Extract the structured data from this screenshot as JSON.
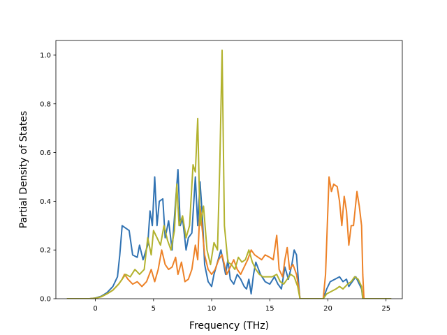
{
  "chart_data": {
    "type": "line",
    "title": "",
    "xlabel": "Frequency (THz)",
    "ylabel": "Partial Density of States",
    "xlim": [
      -3.4,
      26.4
    ],
    "ylim": [
      0.0,
      1.06
    ],
    "xticks": [
      0,
      5,
      10,
      15,
      20,
      25
    ],
    "xtick_labels": [
      "0",
      "5",
      "10",
      "15",
      "20",
      "25"
    ],
    "yticks": [
      0.0,
      0.2,
      0.4,
      0.6,
      0.8,
      1.0
    ],
    "ytick_labels": [
      "0.0",
      "0.2",
      "0.4",
      "0.6",
      "0.8",
      "1.0"
    ],
    "grid": false,
    "legend": "none",
    "series": [
      {
        "color": "#3173b3",
        "points": [
          [
            -2.4,
            0
          ],
          [
            -0.5,
            0
          ],
          [
            0,
            0.003
          ],
          [
            0.5,
            0.01
          ],
          [
            1,
            0.025
          ],
          [
            1.5,
            0.05
          ],
          [
            1.9,
            0.09
          ],
          [
            2.1,
            0.18
          ],
          [
            2.3,
            0.3
          ],
          [
            2.6,
            0.29
          ],
          [
            2.9,
            0.28
          ],
          [
            3.2,
            0.18
          ],
          [
            3.6,
            0.17
          ],
          [
            3.8,
            0.22
          ],
          [
            4.1,
            0.16
          ],
          [
            4.5,
            0.22
          ],
          [
            4.7,
            0.36
          ],
          [
            4.9,
            0.3
          ],
          [
            5.1,
            0.5
          ],
          [
            5.3,
            0.3
          ],
          [
            5.5,
            0.4
          ],
          [
            5.8,
            0.41
          ],
          [
            6.0,
            0.25
          ],
          [
            6.3,
            0.32
          ],
          [
            6.6,
            0.2
          ],
          [
            6.9,
            0.4
          ],
          [
            7.1,
            0.53
          ],
          [
            7.3,
            0.3
          ],
          [
            7.5,
            0.33
          ],
          [
            7.8,
            0.2
          ],
          [
            8.0,
            0.25
          ],
          [
            8.3,
            0.27
          ],
          [
            8.6,
            0.5
          ],
          [
            8.8,
            0.3
          ],
          [
            9.0,
            0.48
          ],
          [
            9.2,
            0.34
          ],
          [
            9.4,
            0.14
          ],
          [
            9.7,
            0.07
          ],
          [
            10.0,
            0.05
          ],
          [
            10.2,
            0.1
          ],
          [
            10.5,
            0.15
          ],
          [
            10.8,
            0.2
          ],
          [
            11.0,
            0.15
          ],
          [
            11.2,
            0.1
          ],
          [
            11.4,
            0.16
          ],
          [
            11.6,
            0.08
          ],
          [
            11.9,
            0.06
          ],
          [
            12.2,
            0.1
          ],
          [
            12.5,
            0.08
          ],
          [
            12.8,
            0.05
          ],
          [
            13.0,
            0.04
          ],
          [
            13.2,
            0.08
          ],
          [
            13.4,
            0.02
          ],
          [
            13.6,
            0.1
          ],
          [
            13.8,
            0.15
          ],
          [
            14.2,
            0.1
          ],
          [
            14.6,
            0.07
          ],
          [
            15.0,
            0.06
          ],
          [
            15.4,
            0.09
          ],
          [
            15.7,
            0.06
          ],
          [
            16.0,
            0.04
          ],
          [
            16.3,
            0.13
          ],
          [
            16.6,
            0.08
          ],
          [
            16.9,
            0.14
          ],
          [
            17.1,
            0.2
          ],
          [
            17.3,
            0.18
          ],
          [
            17.5,
            0.05
          ],
          [
            17.6,
            0
          ],
          [
            19.6,
            0
          ],
          [
            19.9,
            0.04
          ],
          [
            20.2,
            0.07
          ],
          [
            20.6,
            0.08
          ],
          [
            21.0,
            0.09
          ],
          [
            21.3,
            0.07
          ],
          [
            21.6,
            0.08
          ],
          [
            21.8,
            0.05
          ],
          [
            22.1,
            0.07
          ],
          [
            22.4,
            0.09
          ],
          [
            22.7,
            0.06
          ],
          [
            22.9,
            0.04
          ],
          [
            23.0,
            0
          ],
          [
            25.4,
            0
          ]
        ]
      },
      {
        "color": "#ed8228",
        "points": [
          [
            -2.4,
            0
          ],
          [
            -0.5,
            0
          ],
          [
            0,
            0.002
          ],
          [
            0.5,
            0.008
          ],
          [
            1,
            0.02
          ],
          [
            1.5,
            0.035
          ],
          [
            2.0,
            0.06
          ],
          [
            2.3,
            0.08
          ],
          [
            2.5,
            0.1
          ],
          [
            2.8,
            0.08
          ],
          [
            3.2,
            0.06
          ],
          [
            3.6,
            0.07
          ],
          [
            4.0,
            0.05
          ],
          [
            4.4,
            0.07
          ],
          [
            4.8,
            0.12
          ],
          [
            5.1,
            0.07
          ],
          [
            5.4,
            0.12
          ],
          [
            5.7,
            0.2
          ],
          [
            6.0,
            0.14
          ],
          [
            6.3,
            0.12
          ],
          [
            6.6,
            0.13
          ],
          [
            6.9,
            0.17
          ],
          [
            7.1,
            0.1
          ],
          [
            7.4,
            0.15
          ],
          [
            7.7,
            0.07
          ],
          [
            8.0,
            0.08
          ],
          [
            8.3,
            0.12
          ],
          [
            8.6,
            0.22
          ],
          [
            8.8,
            0.16
          ],
          [
            9.0,
            0.38
          ],
          [
            9.2,
            0.28
          ],
          [
            9.4,
            0.18
          ],
          [
            9.7,
            0.12
          ],
          [
            10.0,
            0.1
          ],
          [
            10.3,
            0.12
          ],
          [
            10.6,
            0.16
          ],
          [
            10.9,
            0.18
          ],
          [
            11.1,
            0.14
          ],
          [
            11.3,
            0.1
          ],
          [
            11.6,
            0.13
          ],
          [
            11.9,
            0.16
          ],
          [
            12.2,
            0.12
          ],
          [
            12.5,
            0.1
          ],
          [
            12.8,
            0.13
          ],
          [
            13.1,
            0.16
          ],
          [
            13.4,
            0.2
          ],
          [
            13.7,
            0.18
          ],
          [
            14.0,
            0.17
          ],
          [
            14.3,
            0.16
          ],
          [
            14.6,
            0.18
          ],
          [
            15.0,
            0.17
          ],
          [
            15.3,
            0.16
          ],
          [
            15.6,
            0.26
          ],
          [
            15.8,
            0.12
          ],
          [
            16.1,
            0.09
          ],
          [
            16.3,
            0.16
          ],
          [
            16.5,
            0.21
          ],
          [
            16.7,
            0.12
          ],
          [
            17.0,
            0.14
          ],
          [
            17.3,
            0.1
          ],
          [
            17.5,
            0.04
          ],
          [
            17.6,
            0
          ],
          [
            19.6,
            0
          ],
          [
            19.8,
            0.1
          ],
          [
            19.95,
            0.3
          ],
          [
            20.1,
            0.5
          ],
          [
            20.3,
            0.44
          ],
          [
            20.5,
            0.47
          ],
          [
            20.8,
            0.46
          ],
          [
            21.0,
            0.4
          ],
          [
            21.2,
            0.3
          ],
          [
            21.4,
            0.42
          ],
          [
            21.6,
            0.36
          ],
          [
            21.8,
            0.22
          ],
          [
            22.0,
            0.3
          ],
          [
            22.2,
            0.3
          ],
          [
            22.5,
            0.44
          ],
          [
            22.7,
            0.38
          ],
          [
            22.9,
            0.3
          ],
          [
            23.0,
            0.1
          ],
          [
            23.1,
            0
          ],
          [
            25.4,
            0
          ]
        ]
      },
      {
        "color": "#b2b22e",
        "points": [
          [
            -2.4,
            0
          ],
          [
            -0.5,
            0
          ],
          [
            0,
            0.002
          ],
          [
            0.5,
            0.008
          ],
          [
            1,
            0.02
          ],
          [
            1.5,
            0.035
          ],
          [
            2.0,
            0.06
          ],
          [
            2.3,
            0.08
          ],
          [
            2.6,
            0.1
          ],
          [
            3.0,
            0.09
          ],
          [
            3.4,
            0.12
          ],
          [
            3.8,
            0.1
          ],
          [
            4.2,
            0.12
          ],
          [
            4.5,
            0.25
          ],
          [
            4.8,
            0.18
          ],
          [
            5.0,
            0.28
          ],
          [
            5.3,
            0.25
          ],
          [
            5.6,
            0.22
          ],
          [
            5.9,
            0.3
          ],
          [
            6.2,
            0.24
          ],
          [
            6.5,
            0.2
          ],
          [
            6.8,
            0.28
          ],
          [
            7.0,
            0.47
          ],
          [
            7.2,
            0.3
          ],
          [
            7.5,
            0.34
          ],
          [
            7.8,
            0.25
          ],
          [
            8.1,
            0.3
          ],
          [
            8.4,
            0.55
          ],
          [
            8.6,
            0.52
          ],
          [
            8.8,
            0.74
          ],
          [
            9.0,
            0.3
          ],
          [
            9.3,
            0.38
          ],
          [
            9.6,
            0.2
          ],
          [
            9.9,
            0.14
          ],
          [
            10.2,
            0.23
          ],
          [
            10.5,
            0.2
          ],
          [
            10.7,
            0.55
          ],
          [
            10.9,
            1.02
          ],
          [
            11.1,
            0.3
          ],
          [
            11.4,
            0.15
          ],
          [
            11.7,
            0.14
          ],
          [
            12.0,
            0.12
          ],
          [
            12.3,
            0.17
          ],
          [
            12.6,
            0.15
          ],
          [
            12.9,
            0.16
          ],
          [
            13.2,
            0.2
          ],
          [
            13.5,
            0.15
          ],
          [
            13.8,
            0.12
          ],
          [
            14.1,
            0.1
          ],
          [
            14.4,
            0.09
          ],
          [
            14.8,
            0.09
          ],
          [
            15.2,
            0.09
          ],
          [
            15.6,
            0.1
          ],
          [
            15.9,
            0.07
          ],
          [
            16.2,
            0.06
          ],
          [
            16.5,
            0.08
          ],
          [
            16.8,
            0.1
          ],
          [
            17.1,
            0.09
          ],
          [
            17.4,
            0.05
          ],
          [
            17.6,
            0
          ],
          [
            19.6,
            0
          ],
          [
            19.9,
            0.02
          ],
          [
            20.3,
            0.03
          ],
          [
            20.7,
            0.04
          ],
          [
            21.0,
            0.05
          ],
          [
            21.3,
            0.04
          ],
          [
            21.7,
            0.06
          ],
          [
            22.0,
            0.07
          ],
          [
            22.3,
            0.09
          ],
          [
            22.6,
            0.08
          ],
          [
            22.9,
            0.05
          ],
          [
            23.0,
            0
          ],
          [
            25.4,
            0
          ]
        ]
      }
    ]
  }
}
